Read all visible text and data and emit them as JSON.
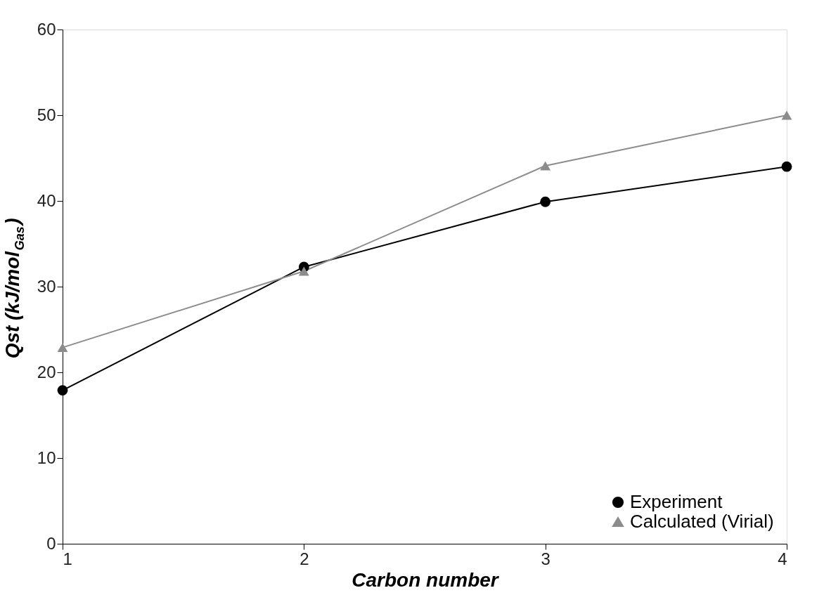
{
  "chart_data": {
    "type": "line",
    "xlabel": "Carbon number",
    "ylabel": "Qst (kJ/mol$_{Gas}$)",
    "x": [
      1,
      2,
      3,
      4
    ],
    "series": [
      {
        "name": "Experiment",
        "color": "#000000",
        "marker": "circle",
        "values": [
          17.9,
          32.3,
          39.9,
          44.0
        ]
      },
      {
        "name": "Calculated (Virial)",
        "color": "#8c8c8c",
        "marker": "triangle",
        "values": [
          22.9,
          31.8,
          44.1,
          50.0
        ]
      }
    ],
    "xlim": [
      1,
      4
    ],
    "xticks": [
      1,
      2,
      3,
      4
    ],
    "ylim": [
      0,
      60
    ],
    "yticks": [
      0,
      10,
      20,
      30,
      40,
      50,
      60
    ],
    "grid": false,
    "legend": "bottom right",
    "line_style": "solid"
  }
}
